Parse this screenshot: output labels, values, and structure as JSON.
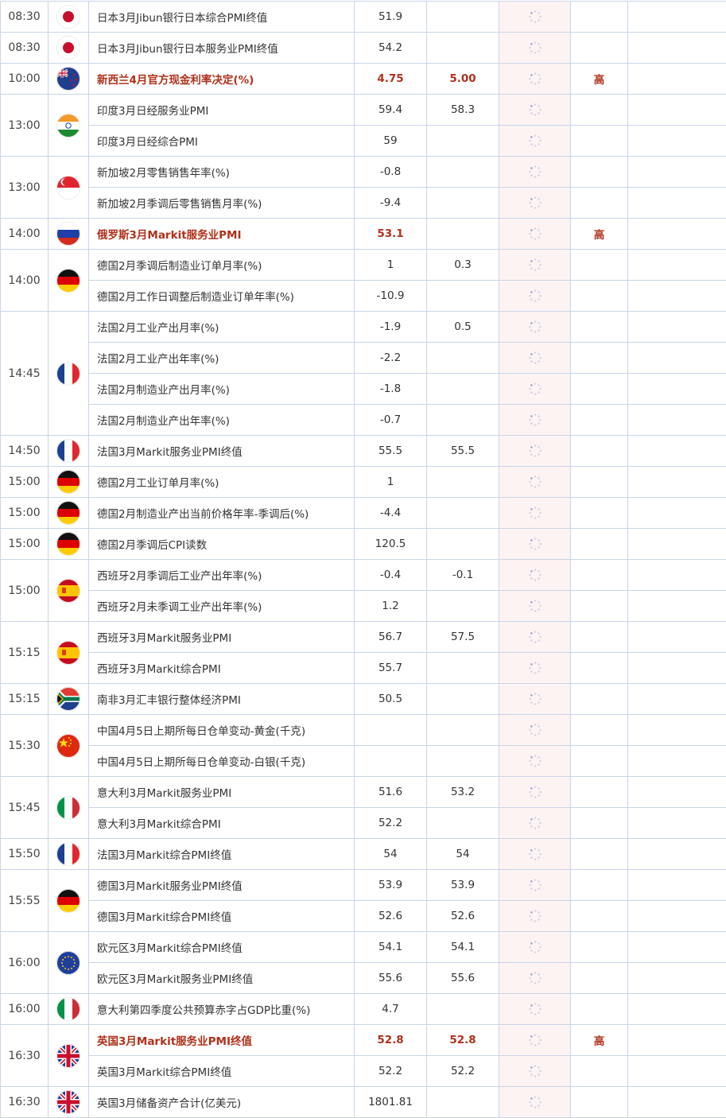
{
  "colors": {
    "highlight": "#b0301a",
    "grid": "#c8d5e8",
    "actual_bg": "#fdf3f3"
  },
  "groups": [
    {
      "time": "08:30",
      "country": "japan",
      "events": [
        {
          "name": "日本3月Jibun银行日本综合PMI终值",
          "previous": "51.9",
          "forecast": "",
          "importance": ""
        }
      ]
    },
    {
      "time": "08:30",
      "country": "japan",
      "events": [
        {
          "name": "日本3月Jibun银行日本服务业PMI终值",
          "previous": "54.2",
          "forecast": "",
          "importance": ""
        }
      ]
    },
    {
      "time": "10:00",
      "country": "new-zealand",
      "events": [
        {
          "name": "新西兰4月官方现金利率决定(%)",
          "previous": "4.75",
          "forecast": "5.00",
          "importance": "高",
          "highlight": true
        }
      ]
    },
    {
      "time": "13:00",
      "country": "india",
      "events": [
        {
          "name": "印度3月日经服务业PMI",
          "previous": "59.4",
          "forecast": "58.3",
          "importance": ""
        },
        {
          "name": "印度3月日经综合PMI",
          "previous": "59",
          "forecast": "",
          "importance": ""
        }
      ]
    },
    {
      "time": "13:00",
      "country": "singapore",
      "events": [
        {
          "name": "新加坡2月零售销售年率(%)",
          "previous": "-0.8",
          "forecast": "",
          "importance": ""
        },
        {
          "name": "新加坡2月季调后零售销售月率(%)",
          "previous": "-9.4",
          "forecast": "",
          "importance": ""
        }
      ]
    },
    {
      "time": "14:00",
      "country": "russia",
      "events": [
        {
          "name": "俄罗斯3月Markit服务业PMI",
          "previous": "53.1",
          "forecast": "",
          "importance": "高",
          "highlight": true
        }
      ]
    },
    {
      "time": "14:00",
      "country": "germany",
      "events": [
        {
          "name": "德国2月季调后制造业订单月率(%)",
          "previous": "1",
          "forecast": "0.3",
          "importance": ""
        },
        {
          "name": "德国2月工作日调整后制造业订单年率(%)",
          "previous": "-10.9",
          "forecast": "",
          "importance": ""
        }
      ]
    },
    {
      "time": "14:45",
      "country": "france",
      "events": [
        {
          "name": "法国2月工业产出月率(%)",
          "previous": "-1.9",
          "forecast": "0.5",
          "importance": ""
        },
        {
          "name": "法国2月工业产出年率(%)",
          "previous": "-2.2",
          "forecast": "",
          "importance": ""
        },
        {
          "name": "法国2月制造业产出月率(%)",
          "previous": "-1.8",
          "forecast": "",
          "importance": ""
        },
        {
          "name": "法国2月制造业产出年率(%)",
          "previous": "-0.7",
          "forecast": "",
          "importance": ""
        }
      ]
    },
    {
      "time": "14:50",
      "country": "france",
      "events": [
        {
          "name": "法国3月Markit服务业PMI终值",
          "previous": "55.5",
          "forecast": "55.5",
          "importance": ""
        }
      ]
    },
    {
      "time": "15:00",
      "country": "germany",
      "events": [
        {
          "name": "德国2月工业订单月率(%)",
          "previous": "1",
          "forecast": "",
          "importance": ""
        }
      ]
    },
    {
      "time": "15:00",
      "country": "germany",
      "events": [
        {
          "name": "德国2月制造业产出当前价格年率-季调后(%)",
          "previous": "-4.4",
          "forecast": "",
          "importance": ""
        }
      ]
    },
    {
      "time": "15:00",
      "country": "germany",
      "events": [
        {
          "name": "德国2月季调后CPI读数",
          "previous": "120.5",
          "forecast": "",
          "importance": ""
        }
      ]
    },
    {
      "time": "15:00",
      "country": "spain",
      "events": [
        {
          "name": "西班牙2月季调后工业产出年率(%)",
          "previous": "-0.4",
          "forecast": "-0.1",
          "importance": ""
        },
        {
          "name": "西班牙2月未季调工业产出年率(%)",
          "previous": "1.2",
          "forecast": "",
          "importance": ""
        }
      ]
    },
    {
      "time": "15:15",
      "country": "spain",
      "events": [
        {
          "name": "西班牙3月Markit服务业PMI",
          "previous": "56.7",
          "forecast": "57.5",
          "importance": ""
        },
        {
          "name": "西班牙3月Markit综合PMI",
          "previous": "55.7",
          "forecast": "",
          "importance": ""
        }
      ]
    },
    {
      "time": "15:15",
      "country": "south-africa",
      "events": [
        {
          "name": "南非3月汇丰银行整体经济PMI",
          "previous": "50.5",
          "forecast": "",
          "importance": ""
        }
      ]
    },
    {
      "time": "15:30",
      "country": "china",
      "events": [
        {
          "name": "中国4月5日上期所每日仓单变动-黄金(千克)",
          "previous": "",
          "forecast": "",
          "importance": ""
        },
        {
          "name": "中国4月5日上期所每日仓单变动-白银(千克)",
          "previous": "",
          "forecast": "",
          "importance": ""
        }
      ]
    },
    {
      "time": "15:45",
      "country": "italy",
      "events": [
        {
          "name": "意大利3月Markit服务业PMI",
          "previous": "51.6",
          "forecast": "53.2",
          "importance": ""
        },
        {
          "name": "意大利3月Markit综合PMI",
          "previous": "52.2",
          "forecast": "",
          "importance": ""
        }
      ]
    },
    {
      "time": "15:50",
      "country": "france",
      "events": [
        {
          "name": "法国3月Markit综合PMI终值",
          "previous": "54",
          "forecast": "54",
          "importance": ""
        }
      ]
    },
    {
      "time": "15:55",
      "country": "germany",
      "events": [
        {
          "name": "德国3月Markit服务业PMI终值",
          "previous": "53.9",
          "forecast": "53.9",
          "importance": ""
        },
        {
          "name": "德国3月Markit综合PMI终值",
          "previous": "52.6",
          "forecast": "52.6",
          "importance": ""
        }
      ]
    },
    {
      "time": "16:00",
      "country": "eurozone",
      "events": [
        {
          "name": "欧元区3月Markit综合PMI终值",
          "previous": "54.1",
          "forecast": "54.1",
          "importance": ""
        },
        {
          "name": "欧元区3月Markit服务业PMI终值",
          "previous": "55.6",
          "forecast": "55.6",
          "importance": ""
        }
      ]
    },
    {
      "time": "16:00",
      "country": "italy",
      "events": [
        {
          "name": "意大利第四季度公共预算赤字占GDP比重(%)",
          "previous": "4.7",
          "forecast": "",
          "importance": ""
        }
      ]
    },
    {
      "time": "16:30",
      "country": "uk",
      "events": [
        {
          "name": "英国3月Markit服务业PMI终值",
          "previous": "52.8",
          "forecast": "52.8",
          "importance": "高",
          "highlight": true
        },
        {
          "name": "英国3月Markit综合PMI终值",
          "previous": "52.2",
          "forecast": "52.2",
          "importance": ""
        }
      ]
    },
    {
      "time": "16:30",
      "country": "uk",
      "events": [
        {
          "name": "英国3月储备资产合计(亿美元)",
          "previous": "1801.81",
          "forecast": "",
          "importance": ""
        }
      ]
    }
  ]
}
